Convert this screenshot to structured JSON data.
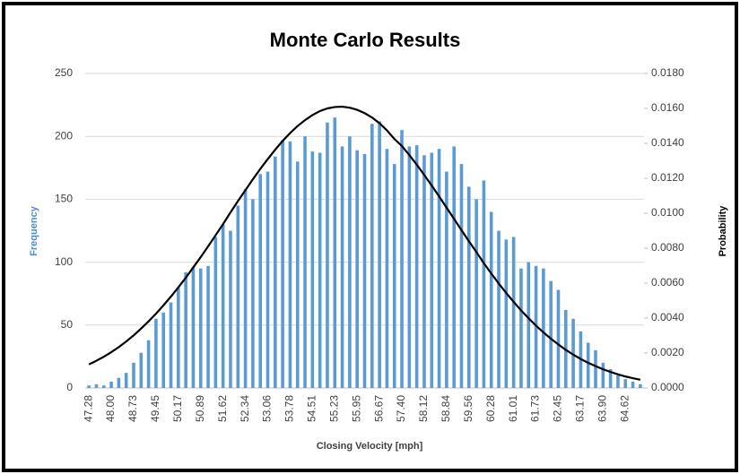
{
  "chart_data": {
    "type": "bar",
    "title": "Monte Carlo Results",
    "x_label": "Closing Velocity [mph]",
    "y_label": "Frequency",
    "y2_label": "Probability",
    "y_label_color": "#4a8fd0",
    "y2_label_color": "#000000",
    "grid": true,
    "categories": [
      "47.28",
      null,
      null,
      "48.00",
      null,
      null,
      "48.73",
      null,
      null,
      "49.45",
      null,
      null,
      "50.17",
      null,
      null,
      "50.89",
      null,
      null,
      "51.62",
      null,
      null,
      "52.34",
      null,
      null,
      "53.06",
      null,
      null,
      "53.78",
      null,
      null,
      "54.51",
      null,
      null,
      "55.23",
      null,
      null,
      "55.95",
      null,
      null,
      "56.67",
      null,
      null,
      "57.40",
      null,
      null,
      "58.12",
      null,
      null,
      "58.84",
      null,
      null,
      "59.56",
      null,
      null,
      "60.28",
      null,
      null,
      "61.01",
      null,
      null,
      "61.73",
      null,
      null,
      "62.45",
      null,
      null,
      "63.17",
      null,
      null,
      "63.90",
      null,
      null,
      "64.62",
      null,
      null
    ],
    "ylim": [
      0,
      250
    ],
    "yticks": [
      0,
      50,
      100,
      150,
      200,
      250
    ],
    "y2lim": [
      0,
      0.018
    ],
    "y2ticks": [
      {
        "value": 0,
        "label": "0.0000"
      },
      {
        "value": 0.002,
        "label": "0.0020"
      },
      {
        "value": 0.004,
        "label": "0.0040"
      },
      {
        "value": 0.006,
        "label": "0.0060"
      },
      {
        "value": 0.008,
        "label": "0.0080"
      },
      {
        "value": 0.01,
        "label": "0.0100"
      },
      {
        "value": 0.012,
        "label": "0.0120"
      },
      {
        "value": 0.014,
        "label": "0.0140"
      },
      {
        "value": 0.016,
        "label": "0.0160"
      },
      {
        "value": 0.018,
        "label": "0.0180"
      }
    ],
    "series": [
      {
        "type": "bar",
        "color": "#5b9bd5",
        "values": [
          2,
          3,
          2,
          5,
          8,
          12,
          20,
          28,
          38,
          55,
          60,
          68,
          80,
          92,
          96,
          95,
          97,
          120,
          130,
          125,
          145,
          158,
          150,
          170,
          172,
          184,
          197,
          196,
          180,
          200,
          188,
          187,
          211,
          215,
          192,
          200,
          189,
          186,
          210,
          212,
          190,
          178,
          205,
          192,
          193,
          185,
          187,
          190,
          172,
          192,
          178,
          160,
          150,
          165,
          140,
          125,
          118,
          120,
          95,
          100,
          97,
          95,
          85,
          78,
          62,
          55,
          45,
          36,
          30,
          20,
          15,
          10,
          7,
          5,
          3
        ]
      },
      {
        "type": "line",
        "axis": "y2",
        "color": "#000000",
        "values": [
          0.00135,
          0.00156,
          0.00179,
          0.00205,
          0.00234,
          0.00266,
          0.00301,
          0.0034,
          0.00381,
          0.00425,
          0.00473,
          0.00523,
          0.00576,
          0.00631,
          0.0069,
          0.00749,
          0.00811,
          0.00874,
          0.00938,
          0.01005,
          0.0107,
          0.01132,
          0.01194,
          0.01254,
          0.0131,
          0.01364,
          0.01414,
          0.01459,
          0.01499,
          0.01533,
          0.01562,
          0.01585,
          0.016,
          0.01608,
          0.0161,
          0.01604,
          0.01592,
          0.01573,
          0.01548,
          0.01515,
          0.01474,
          0.01425,
          0.01385,
          0.01333,
          0.01278,
          0.01219,
          0.01159,
          0.01096,
          0.01032,
          0.00968,
          0.00903,
          0.0084,
          0.00778,
          0.00714,
          0.00655,
          0.00598,
          0.00544,
          0.00493,
          0.00444,
          0.00399,
          0.00357,
          0.00318,
          0.00282,
          0.00249,
          0.00218,
          0.00191,
          0.00166,
          0.00144,
          0.00125,
          0.00107,
          0.00092,
          0.00078,
          0.00066,
          0.00056,
          0.00047
        ]
      }
    ]
  }
}
